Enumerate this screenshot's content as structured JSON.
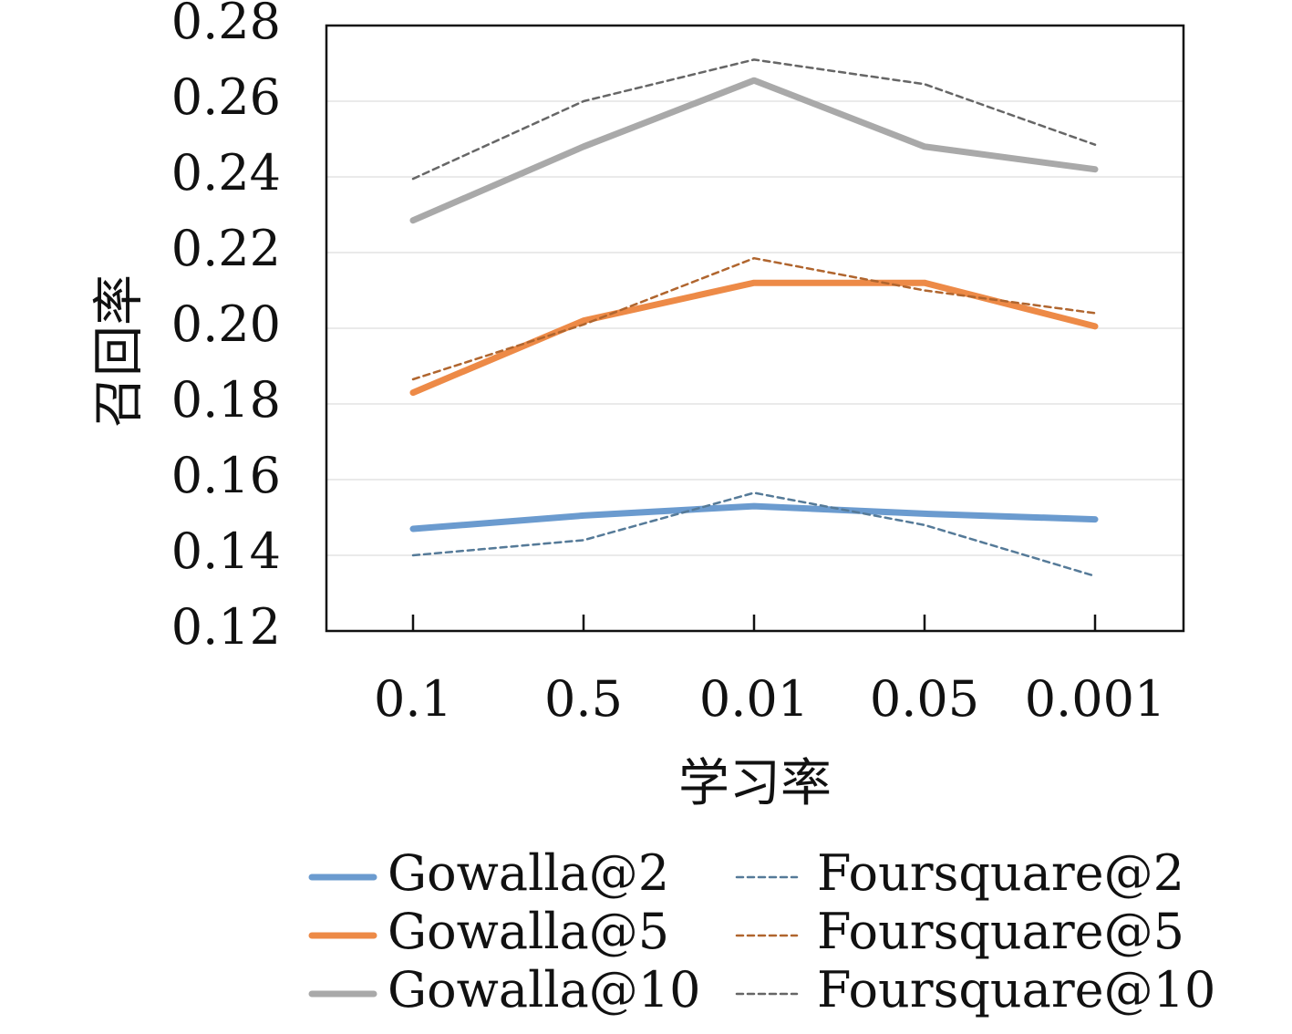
{
  "chart_data": {
    "type": "line",
    "title": "",
    "xlabel": "学习率",
    "ylabel": "召回率",
    "categories": [
      "0.1",
      "0.5",
      "0.01",
      "0.05",
      "0.001"
    ],
    "ylim": [
      0.12,
      0.28
    ],
    "yticks": [
      "0.12",
      "0.14",
      "0.16",
      "0.18",
      "0.20",
      "0.22",
      "0.24",
      "0.26",
      "0.28"
    ],
    "grid": "horizontal",
    "legend_position": "bottom",
    "series": [
      {
        "name": "Gowalla@2",
        "values": [
          0.147,
          0.1505,
          0.153,
          0.151,
          0.1495
        ],
        "color": "#6b9bcf",
        "style": "solid"
      },
      {
        "name": "Gowalla@5",
        "values": [
          0.183,
          0.202,
          0.212,
          0.212,
          0.2005
        ],
        "color": "#ed8a47",
        "style": "solid"
      },
      {
        "name": "Gowalla@10",
        "values": [
          0.2285,
          0.248,
          0.2655,
          0.248,
          0.242
        ],
        "color": "#a9a9a9",
        "style": "solid"
      },
      {
        "name": "Foursquare@2",
        "values": [
          0.14,
          0.144,
          0.1565,
          0.148,
          0.1345
        ],
        "color": "#557a98",
        "style": "dashed"
      },
      {
        "name": "Foursquare@5",
        "values": [
          0.1865,
          0.201,
          0.2185,
          0.21,
          0.204
        ],
        "color": "#b0652e",
        "style": "dashed"
      },
      {
        "name": "Foursquare@10",
        "values": [
          0.2395,
          0.26,
          0.271,
          0.2645,
          0.2485
        ],
        "color": "#666666",
        "style": "dashed"
      }
    ]
  }
}
